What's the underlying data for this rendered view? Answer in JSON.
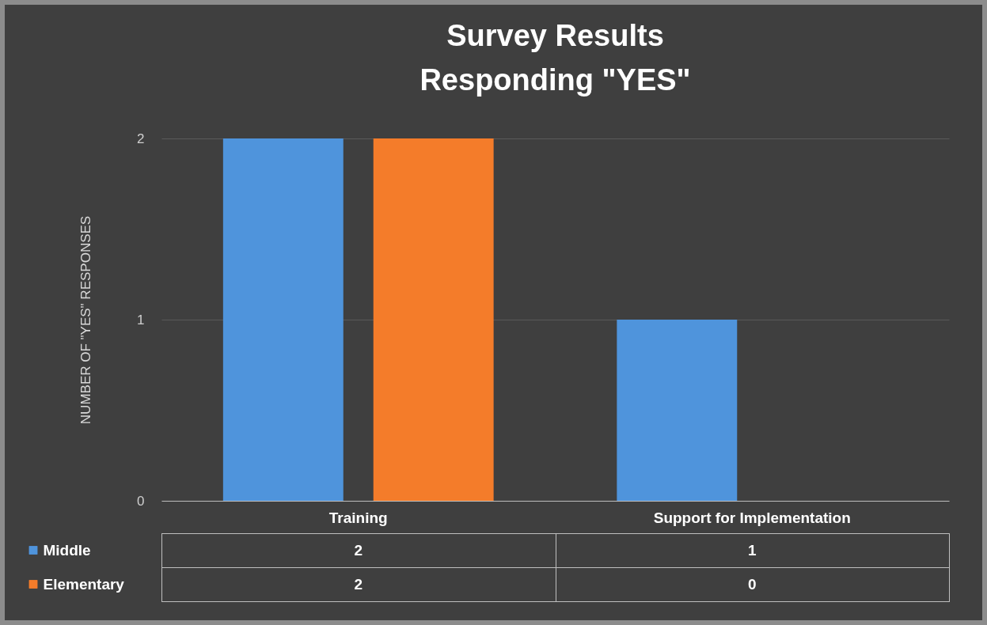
{
  "chart_data": {
    "type": "bar",
    "title": "Survey Results\nResponding \"YES\"",
    "ylabel": "NUMBER OF \"YES\" RESPONSES",
    "categories": [
      "Training",
      "Support for Implementation"
    ],
    "series": [
      {
        "name": "Middle",
        "color": "#4f94dc",
        "values": [
          2,
          1
        ]
      },
      {
        "name": "Elementary",
        "color": "#f47c2a",
        "values": [
          2,
          0
        ]
      }
    ],
    "ylim": [
      0,
      2
    ],
    "yticks": [
      0,
      1,
      2
    ],
    "grid": "y",
    "legend": "bottom left",
    "data_labels": true
  }
}
